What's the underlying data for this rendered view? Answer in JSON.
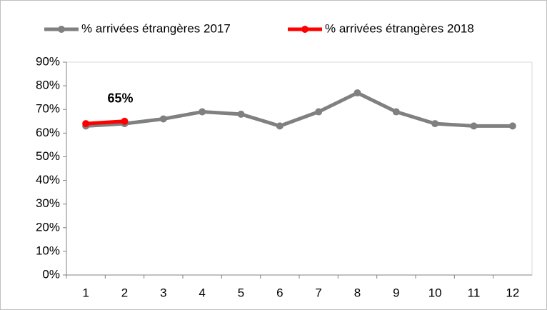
{
  "chart_data": {
    "type": "line",
    "categories": [
      "1",
      "2",
      "3",
      "4",
      "5",
      "6",
      "7",
      "8",
      "9",
      "10",
      "11",
      "12"
    ],
    "series": [
      {
        "name": "% arrivées étrangères 2017",
        "color": "#808080",
        "values": [
          63,
          64,
          66,
          69,
          68,
          63,
          69,
          77,
          69,
          64,
          63,
          63
        ]
      },
      {
        "name": "% arrivées étrangères 2018",
        "color": "#ff0000",
        "values": [
          64,
          65,
          null,
          null,
          null,
          null,
          null,
          null,
          null,
          null,
          null,
          null
        ],
        "value_labels": [
          null,
          "65%",
          null,
          null,
          null,
          null,
          null,
          null,
          null,
          null,
          null,
          null
        ]
      }
    ],
    "ylim": [
      0,
      90
    ],
    "yticks": [
      {
        "value": 0,
        "label": "0%"
      },
      {
        "value": 10,
        "label": "10%"
      },
      {
        "value": 20,
        "label": "20%"
      },
      {
        "value": 30,
        "label": "30%"
      },
      {
        "value": 40,
        "label": "40%"
      },
      {
        "value": 50,
        "label": "50%"
      },
      {
        "value": 60,
        "label": "60%"
      },
      {
        "value": 70,
        "label": "70%"
      },
      {
        "value": 80,
        "label": "80%"
      },
      {
        "value": 90,
        "label": "90%"
      }
    ],
    "legend": "top"
  }
}
